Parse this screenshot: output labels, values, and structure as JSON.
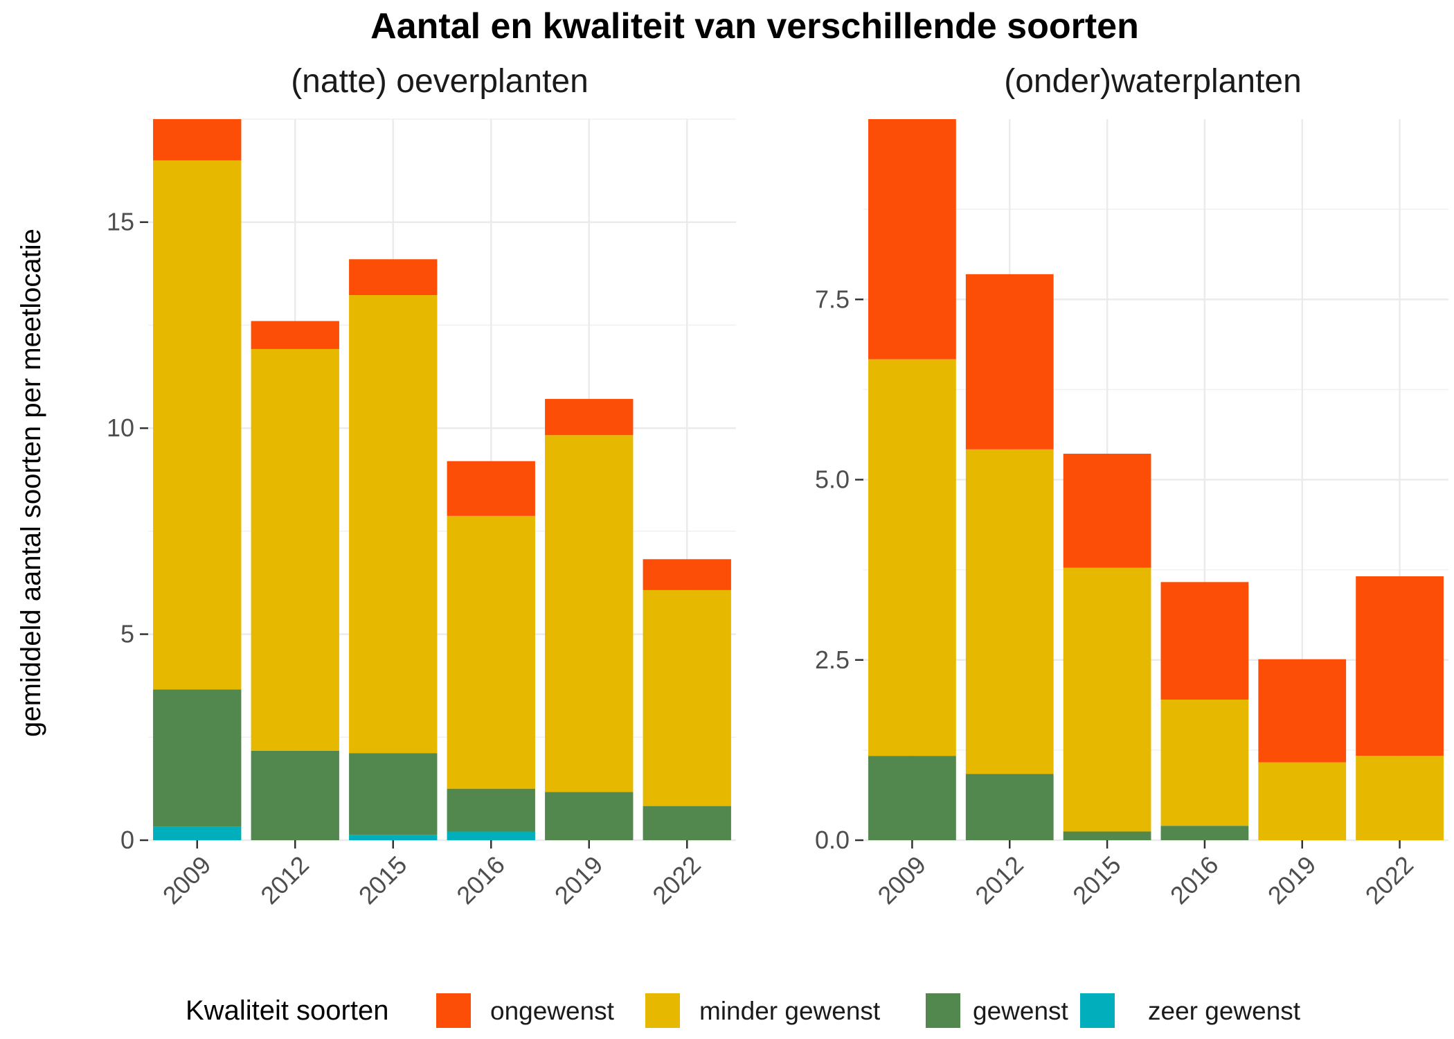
{
  "chart_data": {
    "type": "bar",
    "stacked": true,
    "title": "Aantal en kwaliteit van verschillende soorten",
    "ylabel": "gemiddeld aantal soorten per meetlocatie",
    "categories": [
      "2009",
      "2012",
      "2015",
      "2016",
      "2019",
      "2022"
    ],
    "legend": {
      "title": "Kwaliteit soorten",
      "position": "bottom",
      "items": [
        {
          "label": "ongewenst",
          "color": "#FC4E07"
        },
        {
          "label": "minder gewenst",
          "color": "#E7B800"
        },
        {
          "label": "gewenst",
          "color": "#52884D"
        },
        {
          "label": "zeer gewenst",
          "color": "#00AFBB"
        }
      ]
    },
    "grid": true,
    "panels": [
      {
        "title": "(natte) oeverplanten",
        "ylim": [
          0,
          17.5
        ],
        "yticks": [
          0,
          5,
          10,
          15
        ],
        "ytick_labels": [
          "0",
          "5",
          "10",
          "15"
        ],
        "series": [
          {
            "name": "zeer gewenst",
            "values": [
              0.33,
              0.0,
              0.13,
              0.21,
              0.0,
              0.0
            ]
          },
          {
            "name": "gewenst",
            "values": [
              3.33,
              2.17,
              1.98,
              1.04,
              1.17,
              0.83
            ]
          },
          {
            "name": "minder gewenst",
            "values": [
              12.84,
              9.75,
              11.12,
              6.62,
              8.66,
              5.24
            ]
          },
          {
            "name": "ongewenst",
            "values": [
              1.0,
              0.68,
              0.87,
              1.33,
              0.88,
              0.75
            ]
          }
        ]
      },
      {
        "title": "(onder)waterplanten",
        "ylim": [
          0,
          10
        ],
        "yticks": [
          0,
          2.5,
          5,
          7.5
        ],
        "ytick_labels": [
          "0.0",
          "2.5",
          "5.0",
          "7.5"
        ],
        "series": [
          {
            "name": "zeer gewenst",
            "values": [
              0,
              0,
              0,
              0,
              0,
              0
            ]
          },
          {
            "name": "gewenst",
            "values": [
              1.17,
              0.92,
              0.12,
              0.2,
              0.0,
              0.0
            ]
          },
          {
            "name": "minder gewenst",
            "values": [
              5.5,
              4.5,
              3.66,
              1.75,
              1.08,
              1.17
            ]
          },
          {
            "name": "ongewenst",
            "values": [
              3.33,
              2.43,
              1.58,
              1.63,
              1.43,
              2.49
            ]
          }
        ]
      }
    ]
  }
}
